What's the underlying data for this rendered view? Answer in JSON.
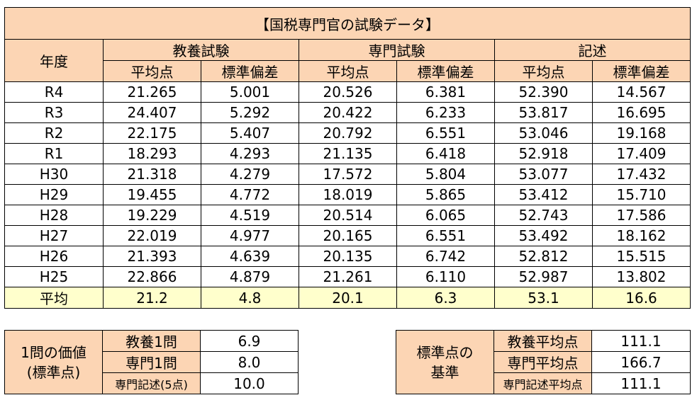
{
  "title": "【国税専門官の試験データ】",
  "headers": {
    "year": "年度",
    "groups": [
      "教養試験",
      "専門試験",
      "記述"
    ],
    "sub": [
      "平均点",
      "標準偏差",
      "平均点",
      "標準偏差",
      "平均点",
      "標準偏差"
    ]
  },
  "rows": [
    [
      "R4",
      "21.265",
      "5.001",
      "20.526",
      "6.381",
      "52.390",
      "14.567"
    ],
    [
      "R3",
      "24.407",
      "5.292",
      "20.422",
      "6.233",
      "53.817",
      "16.695"
    ],
    [
      "R2",
      "22.175",
      "5.407",
      "20.792",
      "6.551",
      "53.046",
      "19.168"
    ],
    [
      "R1",
      "18.293",
      "4.293",
      "21.135",
      "6.418",
      "52.918",
      "17.409"
    ],
    [
      "H30",
      "21.318",
      "4.279",
      "17.572",
      "5.804",
      "53.077",
      "17.432"
    ],
    [
      "H29",
      "19.455",
      "4.772",
      "18.019",
      "5.865",
      "53.412",
      "15.710"
    ],
    [
      "H28",
      "19.229",
      "4.519",
      "20.514",
      "6.065",
      "52.743",
      "17.586"
    ],
    [
      "H27",
      "22.019",
      "4.977",
      "20.165",
      "6.551",
      "53.492",
      "18.162"
    ],
    [
      "H26",
      "21.393",
      "4.639",
      "20.135",
      "6.742",
      "52.812",
      "15.515"
    ],
    [
      "H25",
      "22.866",
      "4.879",
      "21.261",
      "6.110",
      "52.987",
      "13.802"
    ]
  ],
  "average_row": [
    "平均",
    "21.2",
    "4.8",
    "20.1",
    "6.3",
    "53.1",
    "16.6"
  ],
  "value_table": {
    "label_line1": "1問の価値",
    "label_line2": "(標準点)",
    "rows": [
      {
        "label": "教養1問",
        "value": "6.9"
      },
      {
        "label": "専門1問",
        "value": "8.0"
      },
      {
        "label": "専門記述(5点)",
        "value": "10.0"
      }
    ]
  },
  "basis_table": {
    "label_line1": "標準点の",
    "label_line2": "基準",
    "rows": [
      {
        "label": "教養平均点",
        "value": "111.1"
      },
      {
        "label": "専門平均点",
        "value": "166.7"
      },
      {
        "label": "専門記述平均点",
        "value": "111.1"
      }
    ]
  }
}
